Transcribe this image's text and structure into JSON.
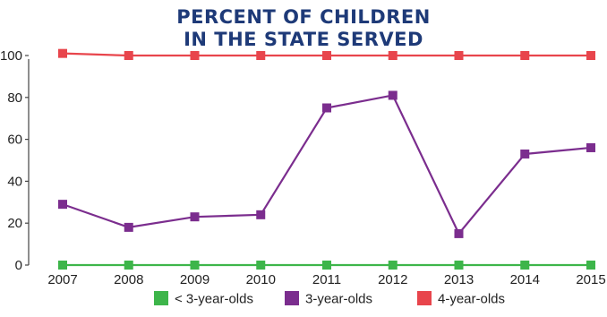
{
  "chart_data": {
    "type": "line",
    "title_lines": [
      "PERCENT OF CHILDREN",
      "IN THE STATE SERVED"
    ],
    "xlabel": "",
    "ylabel": "",
    "x": [
      "2007",
      "2008",
      "2009",
      "2010",
      "2011",
      "2012",
      "2013",
      "2014",
      "2015"
    ],
    "ylim": [
      0,
      100
    ],
    "yticks": [
      0,
      20,
      40,
      60,
      80,
      100
    ],
    "grid": false,
    "legend_position": "bottom",
    "series": [
      {
        "name": "< 3-year-olds",
        "color": "#3db54a",
        "values": [
          0,
          0,
          0,
          0,
          0,
          0,
          0,
          0,
          0
        ]
      },
      {
        "name": "3-year-olds",
        "color": "#7b2d8e",
        "values": [
          29,
          18,
          23,
          24,
          75,
          81,
          15,
          53,
          56
        ]
      },
      {
        "name": "4-year-olds",
        "color": "#e8454c",
        "values": [
          101,
          100,
          100,
          100,
          100,
          100,
          100,
          100,
          100
        ]
      }
    ]
  }
}
